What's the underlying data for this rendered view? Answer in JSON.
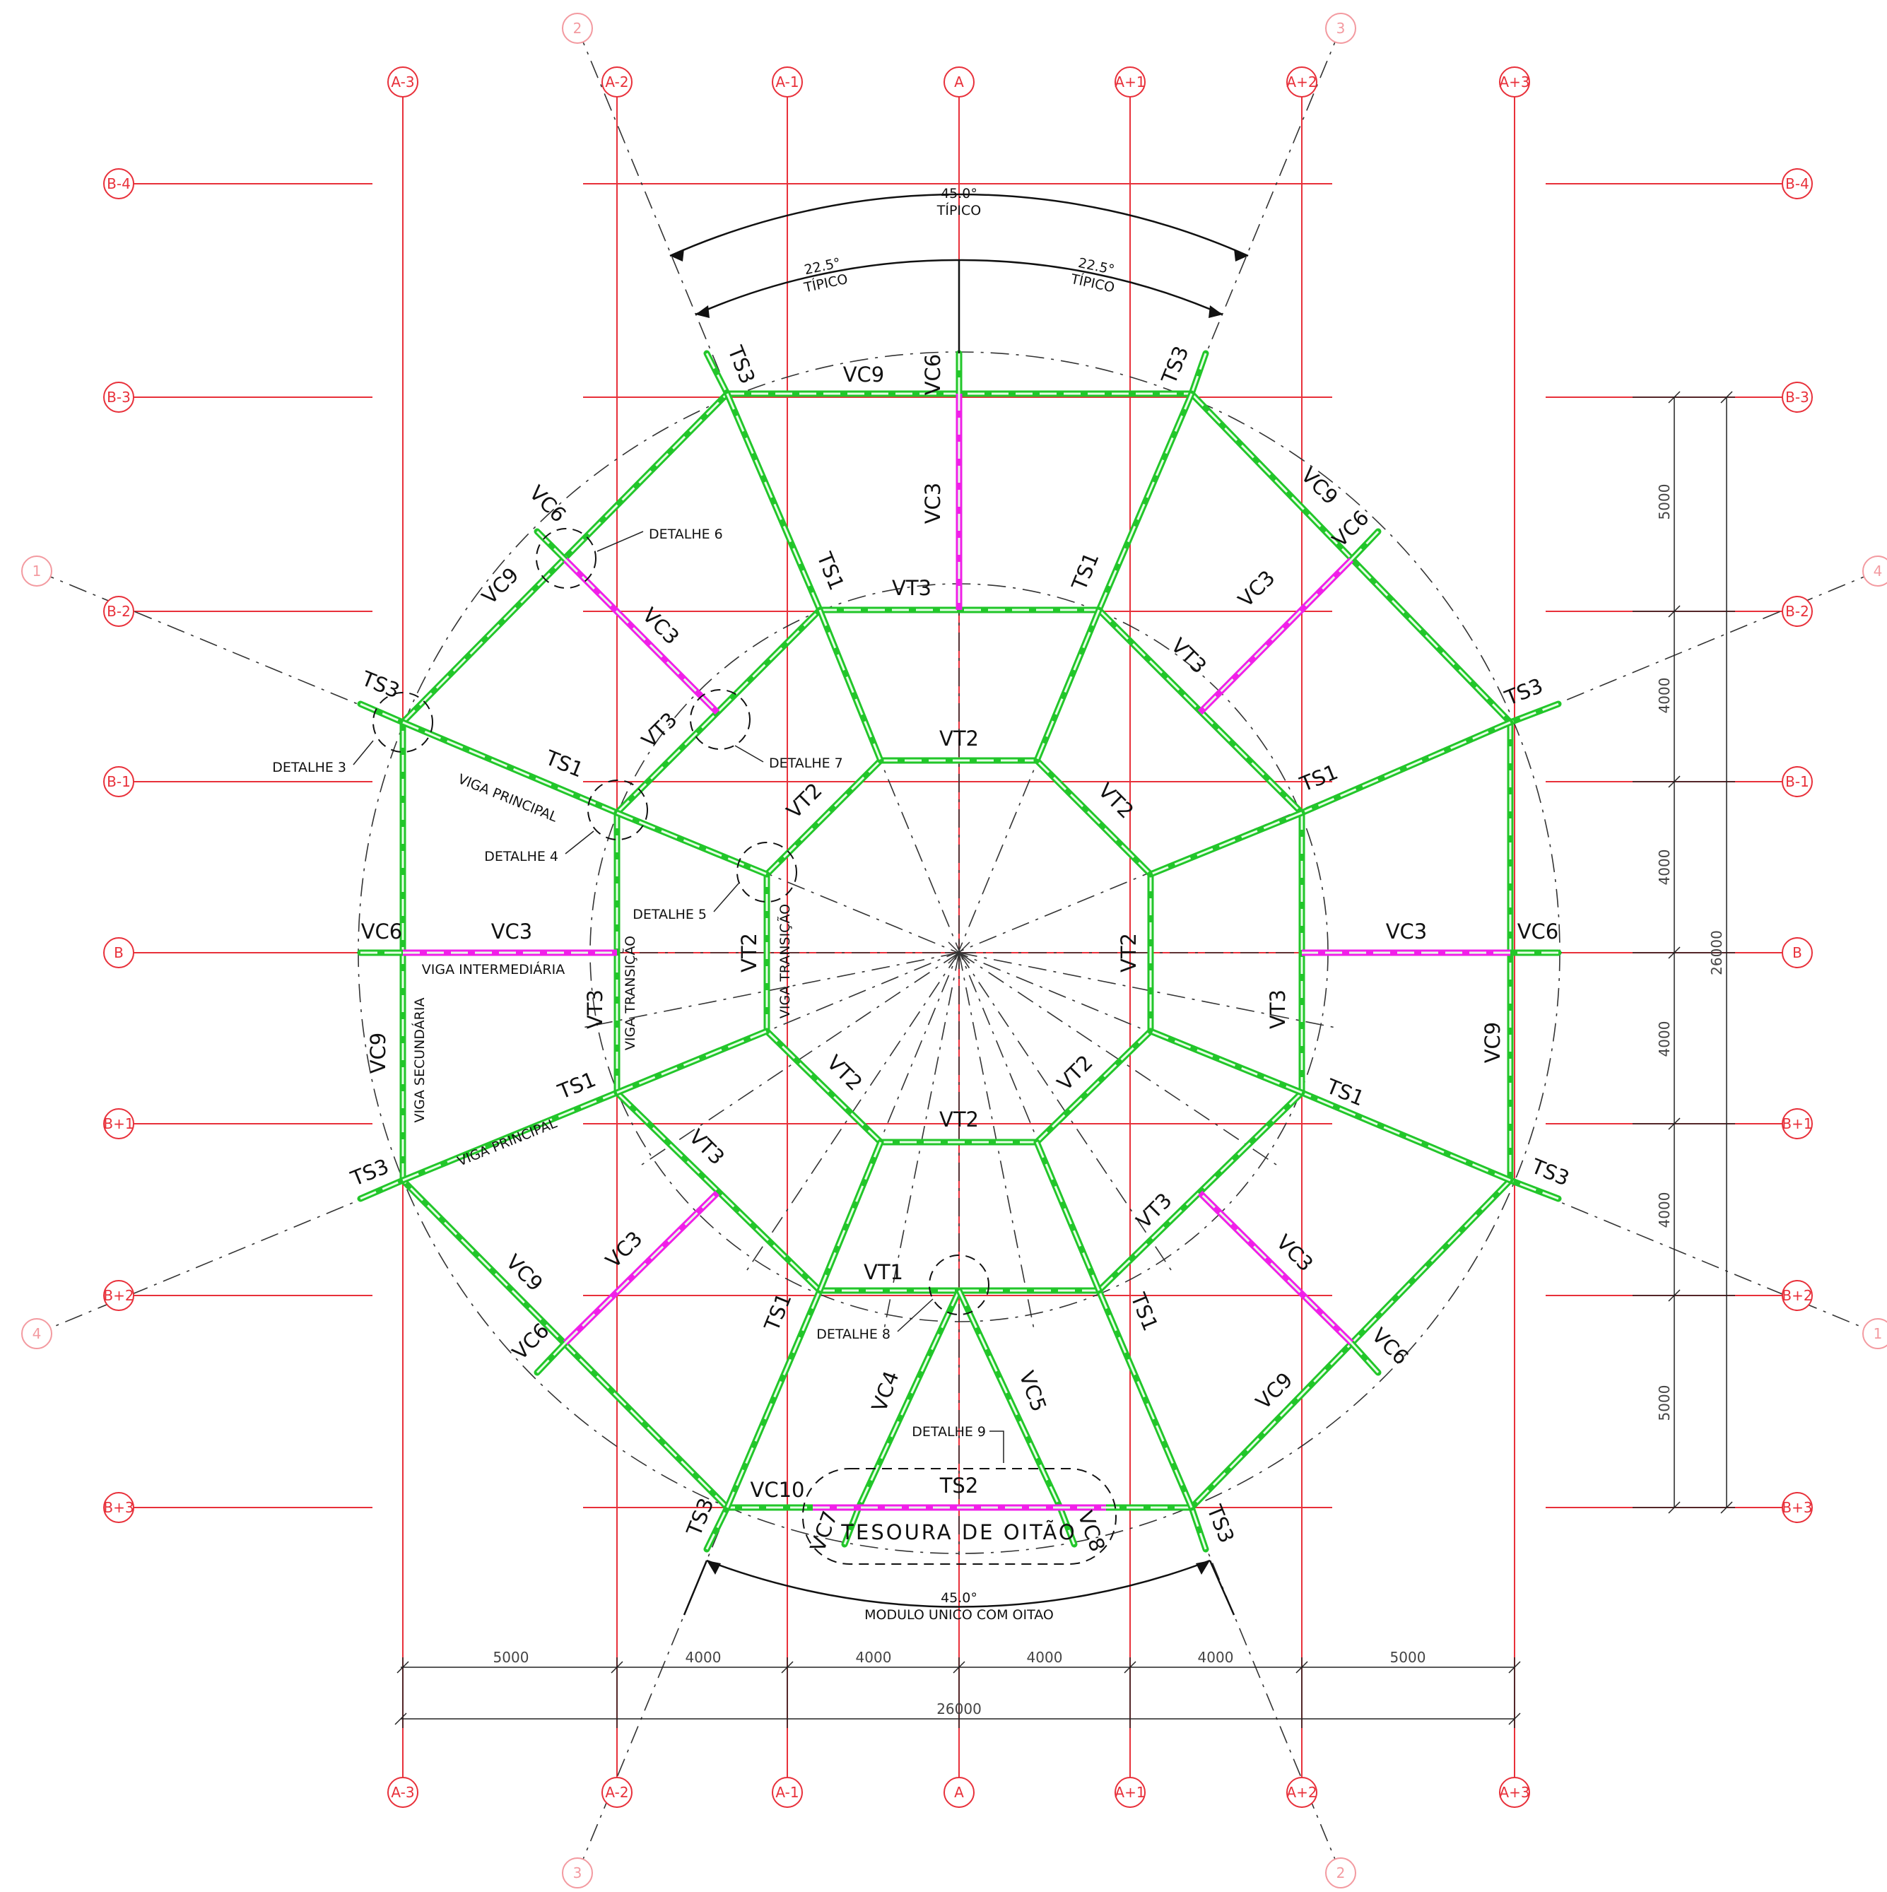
{
  "grid": {
    "columns": [
      "A-3",
      "A-2",
      "A-1",
      "A",
      "A+1",
      "A+2",
      "A+3"
    ],
    "rows": [
      "B-4",
      "B-3",
      "B-2",
      "B-1",
      "B",
      "B+1",
      "B+2",
      "B+3"
    ],
    "radial_bubbles": [
      "1",
      "2",
      "3",
      "4"
    ]
  },
  "angles": {
    "top_outer_value": "45.0°",
    "top_outer_note": "TÍPICO",
    "top_left_value": "22.5°",
    "top_left_note": "TÍPICO",
    "top_right_value": "22.5°",
    "top_right_note": "TÍPICO",
    "bottom_value": "45.0°",
    "bottom_note": "MODULO UNICO COM OITAO"
  },
  "dimensions": {
    "horizontal": [
      "5000",
      "4000",
      "4000",
      "4000",
      "4000",
      "5000"
    ],
    "horizontal_total": "26000",
    "vertical": [
      "5000",
      "4000",
      "4000",
      "4000",
      "4000",
      "5000"
    ],
    "vertical_total": "26000"
  },
  "beam_labels": {
    "ts1": "TS1",
    "ts2": "TS2",
    "ts3": "TS3",
    "vt1": "VT1",
    "vt2": "VT2",
    "vt3": "VT3",
    "vc3": "VC3",
    "vc4": "VC4",
    "vc5": "VC5",
    "vc6": "VC6",
    "vc7": "VC7",
    "vc8": "VC8",
    "vc9": "VC9",
    "vc10": "VC10"
  },
  "notes": {
    "viga_principal": "VIGA PRINCIPAL",
    "viga_intermediaria": "VIGA INTERMEDIÁRIA",
    "viga_secundaria": "VIGA SECUNDÁRIA",
    "viga_transicao": "VIGA TRANSIÇÃO",
    "tesoura_de_oitao": "TESOURA DE OITÃO"
  },
  "details": [
    "DETALHE 3",
    "DETALHE 4",
    "DETALHE 5",
    "DETALHE 6",
    "DETALHE 7",
    "DETALHE 8",
    "DETALHE 9"
  ],
  "colors": {
    "grid": "#e8303a",
    "radial": "#f39aa0",
    "beam": "#22c62a",
    "beam_highlight": "#f020e8",
    "annotation": "#111111"
  }
}
